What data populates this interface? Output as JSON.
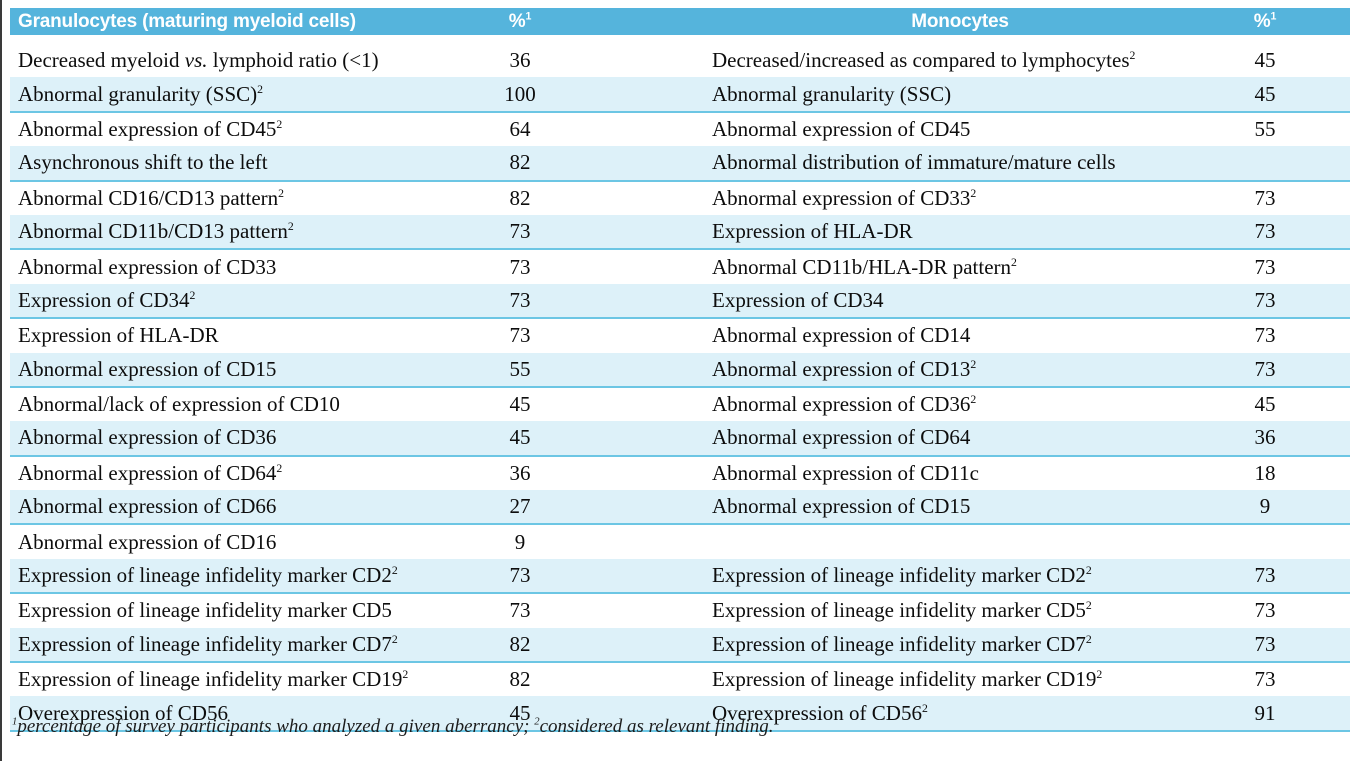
{
  "colors": {
    "header_bg": "#55b4dc",
    "header_text": "#ffffff",
    "alt_row_bg": "#ddf1f9",
    "divider_line": "#6cc6e4",
    "left_border": "#3a3a3a",
    "body_text": "#0d0d0d"
  },
  "table": {
    "header": {
      "granulocytes_label": "Granulocytes (maturing myeloid cells)",
      "granulocytes_pct": "%^1",
      "monocytes_label": "Monocytes",
      "monocytes_pct": "%^1"
    },
    "rows": [
      {
        "granulocyte": "Decreased myeloid *vs.* lymphoid ratio (<1)",
        "g_pct": "36",
        "monocyte": "Decreased/increased as compared to lymphocytes^2",
        "m_pct": "45"
      },
      {
        "granulocyte": "Abnormal granularity (SSC)^2",
        "g_pct": "100",
        "monocyte": "Abnormal granularity (SSC)",
        "m_pct": "45"
      },
      {
        "granulocyte": "Abnormal expression of CD45^2",
        "g_pct": "64",
        "monocyte": "Abnormal expression of CD45",
        "m_pct": "55"
      },
      {
        "granulocyte": "Asynchronous shift to the left",
        "g_pct": "82",
        "monocyte": "Abnormal distribution of immature/mature cells",
        "m_pct": ""
      },
      {
        "granulocyte": "Abnormal CD16/CD13 pattern^2",
        "g_pct": "82",
        "monocyte": "Abnormal expression of CD33^2",
        "m_pct": "73"
      },
      {
        "granulocyte": "Abnormal CD11b/CD13 pattern^2",
        "g_pct": "73",
        "monocyte": "Expression of HLA-DR",
        "m_pct": "73"
      },
      {
        "granulocyte": "Abnormal expression of CD33",
        "g_pct": "73",
        "monocyte": "Abnormal CD11b/HLA-DR pattern^2",
        "m_pct": "73"
      },
      {
        "granulocyte": "Expression of CD34^2",
        "g_pct": "73",
        "monocyte": "Expression of CD34",
        "m_pct": "73"
      },
      {
        "granulocyte": "Expression of HLA-DR",
        "g_pct": "73",
        "monocyte": "Abnormal expression of CD14",
        "m_pct": "73"
      },
      {
        "granulocyte": "Abnormal expression of CD15",
        "g_pct": "55",
        "monocyte": "Abnormal expression of CD13^2",
        "m_pct": "73"
      },
      {
        "granulocyte": "Abnormal/lack of expression of CD10",
        "g_pct": "45",
        "monocyte": "Abnormal expression of CD36^2",
        "m_pct": "45"
      },
      {
        "granulocyte": "Abnormal expression of CD36",
        "g_pct": "45",
        "monocyte": "Abnormal expression of CD64",
        "m_pct": "36"
      },
      {
        "granulocyte": "Abnormal expression of CD64^2",
        "g_pct": "36",
        "monocyte": "Abnormal expression of CD11c",
        "m_pct": "18"
      },
      {
        "granulocyte": "Abnormal expression of CD66",
        "g_pct": "27",
        "monocyte": "Abnormal expression of CD15",
        "m_pct": "9"
      },
      {
        "granulocyte": "Abnormal expression of CD16",
        "g_pct": "9",
        "monocyte": "",
        "m_pct": ""
      },
      {
        "granulocyte": "Expression of lineage infidelity marker CD2^2",
        "g_pct": "73",
        "monocyte": "Expression of lineage infidelity marker CD2^2",
        "m_pct": "73"
      },
      {
        "granulocyte": "Expression of lineage infidelity marker CD5",
        "g_pct": "73",
        "monocyte": "Expression of lineage infidelity marker CD5^2",
        "m_pct": "73"
      },
      {
        "granulocyte": "Expression of lineage infidelity marker CD7^2",
        "g_pct": "82",
        "monocyte": "Expression of lineage infidelity marker CD7^2",
        "m_pct": "73"
      },
      {
        "granulocyte": "Expression of lineage infidelity marker CD19^2",
        "g_pct": "82",
        "monocyte": "Expression of lineage infidelity marker CD19^2",
        "m_pct": "73"
      },
      {
        "granulocyte": "Overexpression of CD56",
        "g_pct": "45",
        "monocyte": "Overexpression of CD56^2",
        "m_pct": "91"
      }
    ],
    "footnote": "^1percentage of survey participants who analyzed a given aberrancy; ^2considered as relevant finding."
  }
}
